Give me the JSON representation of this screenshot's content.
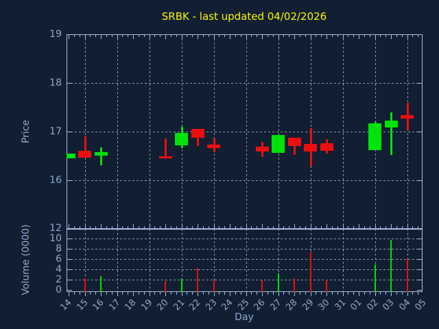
{
  "title": "SRBK - last updated 04/02/2026",
  "axes": {
    "price_label": "Price",
    "volume_label": "Volume (0000)",
    "day_label": "Day",
    "price_ticks": [
      19,
      18,
      17,
      16
    ],
    "price_gridlines": [
      18,
      17,
      16
    ],
    "volume_ticks": [
      12,
      10,
      8,
      6,
      4,
      2,
      0
    ],
    "volume_gridlines": [
      10,
      8,
      6,
      4,
      2
    ],
    "day_ticks": [
      "14",
      "15",
      "16",
      "17",
      "18",
      "19",
      "20",
      "21",
      "22",
      "23",
      "24",
      "25",
      "26",
      "27",
      "28",
      "29",
      "30",
      "31",
      "01",
      "02",
      "03",
      "04",
      "05"
    ]
  },
  "colors": {
    "background": "#121f33",
    "frame": "#a7bedf",
    "text": "#8fa9cc",
    "title": "#f8f800",
    "grid": "#8e99aa",
    "up": "#00e308",
    "down": "#ed0e0e"
  },
  "chart_data": [
    {
      "type": "candlestick",
      "title": "SRBK - last updated 04/02/2026",
      "xlabel": "Day",
      "ylabel": "Price",
      "ylim": [
        15,
        19
      ],
      "grid": true,
      "legend": false,
      "categories": [
        "14",
        "15",
        "16",
        "17",
        "18",
        "19",
        "20",
        "21",
        "22",
        "23",
        "24",
        "25",
        "26",
        "27",
        "28",
        "29",
        "30",
        "31",
        "01",
        "02",
        "03",
        "04",
        "05"
      ],
      "points": [
        {
          "day": "14",
          "open": 16.45,
          "high": 16.55,
          "low": 16.45,
          "close": 16.55,
          "direction": "up"
        },
        {
          "day": "15",
          "open": 16.6,
          "high": 16.9,
          "low": 16.46,
          "close": 16.46,
          "direction": "down"
        },
        {
          "day": "16",
          "open": 16.5,
          "high": 16.67,
          "low": 16.3,
          "close": 16.57,
          "direction": "up"
        },
        {
          "day": "20",
          "open": 16.49,
          "high": 16.85,
          "low": 16.45,
          "close": 16.45,
          "direction": "down"
        },
        {
          "day": "21",
          "open": 16.71,
          "high": 17.1,
          "low": 16.66,
          "close": 16.97,
          "direction": "up"
        },
        {
          "day": "22",
          "open": 17.05,
          "high": 17.05,
          "low": 16.7,
          "close": 16.87,
          "direction": "down"
        },
        {
          "day": "23",
          "open": 16.73,
          "high": 16.85,
          "low": 16.57,
          "close": 16.66,
          "direction": "down"
        },
        {
          "day": "26",
          "open": 16.69,
          "high": 16.79,
          "low": 16.47,
          "close": 16.59,
          "direction": "down"
        },
        {
          "day": "27",
          "open": 16.56,
          "high": 16.92,
          "low": 16.56,
          "close": 16.92,
          "direction": "up"
        },
        {
          "day": "28",
          "open": 16.87,
          "high": 16.87,
          "low": 16.52,
          "close": 16.7,
          "direction": "down"
        },
        {
          "day": "29",
          "open": 16.74,
          "high": 17.06,
          "low": 16.29,
          "close": 16.58,
          "direction": "down"
        },
        {
          "day": "30",
          "open": 16.75,
          "high": 16.84,
          "low": 16.54,
          "close": 16.6,
          "direction": "down"
        },
        {
          "day": "02",
          "open": 16.61,
          "high": 17.19,
          "low": 16.61,
          "close": 17.16,
          "direction": "up"
        },
        {
          "day": "03",
          "open": 17.08,
          "high": 17.39,
          "low": 16.51,
          "close": 17.22,
          "direction": "up"
        },
        {
          "day": "04",
          "open": 17.33,
          "high": 17.59,
          "low": 17.03,
          "close": 17.27,
          "direction": "down"
        }
      ]
    },
    {
      "type": "bar",
      "ylabel": "Volume (0000)",
      "ylim": [
        0,
        12.3
      ],
      "grid": true,
      "legend": false,
      "categories": [
        "14",
        "15",
        "16",
        "17",
        "18",
        "19",
        "20",
        "21",
        "22",
        "23",
        "24",
        "25",
        "26",
        "27",
        "28",
        "29",
        "30",
        "31",
        "01",
        "02",
        "03",
        "04",
        "05"
      ],
      "points": [
        {
          "day": "15",
          "value": 2.3,
          "direction": "down"
        },
        {
          "day": "16",
          "value": 2.7,
          "direction": "up"
        },
        {
          "day": "20",
          "value": 1.8,
          "direction": "down"
        },
        {
          "day": "21",
          "value": 2.3,
          "direction": "up"
        },
        {
          "day": "22",
          "value": 4.3,
          "direction": "down"
        },
        {
          "day": "23",
          "value": 1.9,
          "direction": "down"
        },
        {
          "day": "26",
          "value": 2.0,
          "direction": "down"
        },
        {
          "day": "27",
          "value": 3.3,
          "direction": "up"
        },
        {
          "day": "28",
          "value": 2.3,
          "direction": "down"
        },
        {
          "day": "29",
          "value": 7.4,
          "direction": "down"
        },
        {
          "day": "30",
          "value": 2.1,
          "direction": "down"
        },
        {
          "day": "02",
          "value": 5.0,
          "direction": "up"
        },
        {
          "day": "03",
          "value": 9.8,
          "direction": "up"
        },
        {
          "day": "04",
          "value": 6.1,
          "direction": "down"
        }
      ]
    }
  ]
}
